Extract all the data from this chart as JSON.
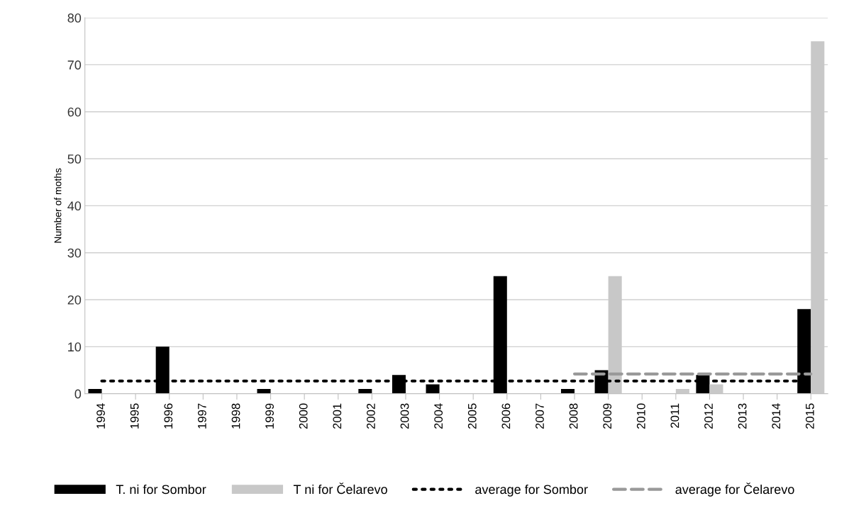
{
  "chart_data": {
    "type": "bar",
    "ylabel": "Number of moths",
    "categories": [
      "1994",
      "1995",
      "1996",
      "1997",
      "1998",
      "1999",
      "2000",
      "2001",
      "2002",
      "2003",
      "2004",
      "2005",
      "2006",
      "2007",
      "2008",
      "2009",
      "2010",
      "2011",
      "2012",
      "2013",
      "2014",
      "2015"
    ],
    "series": [
      {
        "name": "T. ni for Sombor",
        "color": "#000000",
        "values": [
          1,
          0,
          10,
          0,
          0,
          1,
          0,
          0,
          1,
          4,
          2,
          0,
          25,
          0,
          1,
          5,
          0,
          0,
          4,
          0,
          0,
          18
        ]
      },
      {
        "name": "T ni for Čelarevo",
        "color": "#c8c8c8",
        "values": [
          0,
          0,
          0,
          0,
          0,
          0,
          0,
          0,
          0,
          0,
          0,
          0,
          0,
          0,
          0,
          25,
          0,
          1,
          2,
          0,
          0,
          75
        ]
      },
      {
        "name": "average for Sombor",
        "type": "line",
        "color": "#000000",
        "line_style": "dotted",
        "values": [
          2.7,
          2.7,
          2.7,
          2.7,
          2.7,
          2.7,
          2.7,
          2.7,
          2.7,
          2.7,
          2.7,
          2.7,
          2.7,
          2.7,
          2.7,
          2.7,
          2.7,
          2.7,
          2.7,
          2.7,
          2.7,
          2.7
        ]
      },
      {
        "name": "average for Čelarevo",
        "type": "line",
        "color": "#999999",
        "line_style": "dashed",
        "values": [
          null,
          null,
          null,
          null,
          null,
          null,
          null,
          null,
          null,
          null,
          null,
          null,
          null,
          null,
          4.2,
          4.2,
          4.2,
          4.2,
          4.2,
          4.2,
          4.2,
          4.2
        ]
      }
    ],
    "ylim": [
      0,
      80
    ],
    "yticks": [
      0,
      10,
      20,
      30,
      40,
      50,
      60,
      70,
      80
    ],
    "grid": "y",
    "legend": "bottom"
  }
}
